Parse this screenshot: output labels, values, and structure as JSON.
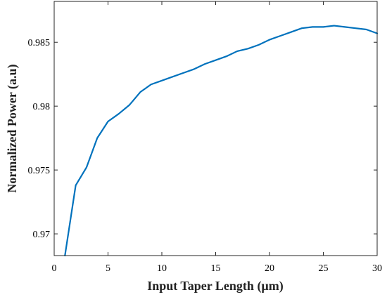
{
  "chart_data": {
    "type": "line",
    "title": "",
    "xlabel": "Input Taper Length (µm)",
    "ylabel": "Normalized Power (a.u)",
    "xlim": [
      0,
      30
    ],
    "ylim": [
      0.9683,
      0.9882
    ],
    "x_ticks": [
      0,
      5,
      10,
      15,
      20,
      25,
      30
    ],
    "x_tick_labels": [
      "0",
      "5",
      "10",
      "15",
      "20",
      "25",
      "30"
    ],
    "y_ticks": [
      0.97,
      0.975,
      0.98,
      0.985
    ],
    "y_tick_labels": [
      "0.97",
      "0.975",
      "0.98",
      "0.985"
    ],
    "grid": false,
    "line_color": "#0072BD",
    "series": [
      {
        "x": [
          1,
          2,
          3,
          4,
          5,
          6,
          7,
          8,
          9,
          10,
          11,
          12,
          13,
          14,
          15,
          16,
          17,
          18,
          19,
          20,
          21,
          22,
          23,
          24,
          25,
          26,
          27,
          28,
          29,
          30
        ],
        "values": [
          0.9683,
          0.9738,
          0.9752,
          0.9775,
          0.9788,
          0.9794,
          0.9801,
          0.9811,
          0.9817,
          0.982,
          0.9823,
          0.9826,
          0.9829,
          0.9833,
          0.9836,
          0.9839,
          0.9843,
          0.9845,
          0.9848,
          0.9852,
          0.9855,
          0.9858,
          0.9861,
          0.9862,
          0.9862,
          0.9863,
          0.9862,
          0.9861,
          0.986,
          0.9857
        ]
      }
    ]
  }
}
